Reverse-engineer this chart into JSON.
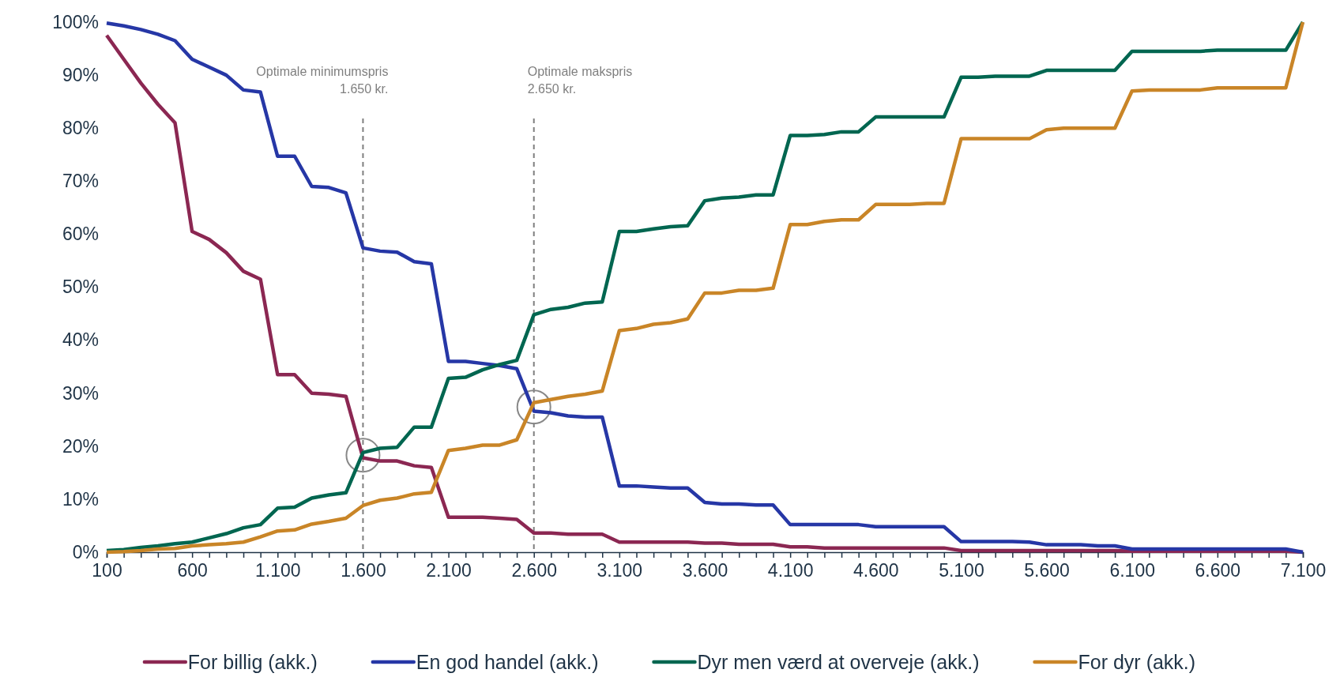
{
  "chart_data": {
    "type": "line",
    "x": [
      100,
      200,
      300,
      400,
      500,
      600,
      700,
      800,
      900,
      1000,
      1100,
      1200,
      1300,
      1400,
      1500,
      1600,
      1700,
      1800,
      1900,
      2000,
      2100,
      2200,
      2300,
      2400,
      2500,
      2600,
      2700,
      2800,
      2900,
      3000,
      3100,
      3200,
      3300,
      3400,
      3500,
      3600,
      3700,
      3800,
      3900,
      4000,
      4100,
      4200,
      4300,
      4400,
      4500,
      4600,
      4700,
      4800,
      4900,
      5000,
      5100,
      5200,
      5300,
      5400,
      5500,
      5600,
      5700,
      5800,
      5900,
      6000,
      6100,
      6200,
      6300,
      6400,
      6500,
      6600,
      6700,
      6800,
      6900,
      7000,
      7100
    ],
    "series": [
      {
        "name": "For billig (akk.)",
        "color": "#8b2752",
        "values": [
          97.5,
          93,
          88.5,
          84.5,
          81,
          60.5,
          59,
          56.5,
          53,
          51.5,
          33.5,
          33.5,
          30,
          29.8,
          29.4,
          17.8,
          17.2,
          17.2,
          16.3,
          16,
          6.6,
          6.6,
          6.6,
          6.4,
          6.2,
          3.6,
          3.6,
          3.4,
          3.4,
          3.4,
          1.9,
          1.9,
          1.9,
          1.9,
          1.9,
          1.7,
          1.7,
          1.5,
          1.5,
          1.5,
          1,
          1,
          0.8,
          0.8,
          0.8,
          0.8,
          0.8,
          0.8,
          0.8,
          0.8,
          0.3,
          0.3,
          0.3,
          0.3,
          0.3,
          0.3,
          0.3,
          0.3,
          0.3,
          0.3,
          0.2,
          0.2,
          0.2,
          0.2,
          0.2,
          0.2,
          0.2,
          0.2,
          0.2,
          0.2,
          0
        ]
      },
      {
        "name": "En god handel (akk.)",
        "color": "#2637a6",
        "values": [
          99.8,
          99.3,
          98.6,
          97.7,
          96.5,
          93,
          91.5,
          90,
          87.2,
          86.8,
          74.7,
          74.7,
          69,
          68.8,
          67.8,
          57.4,
          56.8,
          56.6,
          54.8,
          54.4,
          36,
          36,
          35.6,
          35.2,
          34.6,
          26.6,
          26.3,
          25.7,
          25.5,
          25.5,
          12.5,
          12.5,
          12.3,
          12.1,
          12.1,
          9.4,
          9.1,
          9.1,
          8.9,
          8.9,
          5.2,
          5.2,
          5.2,
          5.2,
          5.2,
          4.8,
          4.8,
          4.8,
          4.8,
          4.8,
          2,
          2,
          2,
          2,
          1.9,
          1.4,
          1.4,
          1.4,
          1.2,
          1.2,
          0.6,
          0.6,
          0.6,
          0.6,
          0.6,
          0.6,
          0.6,
          0.6,
          0.6,
          0.6,
          0
        ]
      },
      {
        "name": "Dyr men værd at overveje (akk.)",
        "color": "#006650",
        "values": [
          0.3,
          0.5,
          0.9,
          1.2,
          1.6,
          1.9,
          2.7,
          3.5,
          4.6,
          5.2,
          8.3,
          8.5,
          10.2,
          10.8,
          11.2,
          18.8,
          19.6,
          19.8,
          23.6,
          23.6,
          32.8,
          33,
          34.4,
          35.4,
          36.2,
          44.8,
          45.8,
          46.2,
          47,
          47.2,
          60.5,
          60.5,
          61,
          61.4,
          61.6,
          66.3,
          66.8,
          67,
          67.4,
          67.4,
          78.6,
          78.6,
          78.8,
          79.3,
          79.3,
          82.1,
          82.1,
          82.1,
          82.1,
          82.1,
          89.6,
          89.6,
          89.8,
          89.8,
          89.8,
          90.9,
          90.9,
          90.9,
          90.9,
          90.9,
          94.5,
          94.5,
          94.5,
          94.5,
          94.5,
          94.7,
          94.7,
          94.7,
          94.7,
          94.7,
          100
        ]
      },
      {
        "name": "For dyr (akk.)",
        "color": "#c98527",
        "values": [
          0,
          0.1,
          0.3,
          0.6,
          0.7,
          1.2,
          1.4,
          1.6,
          1.9,
          2.9,
          4,
          4.2,
          5.3,
          5.8,
          6.4,
          8.8,
          9.8,
          10.2,
          11,
          11.3,
          19.2,
          19.6,
          20.2,
          20.2,
          21.2,
          28.2,
          28.8,
          29.4,
          29.8,
          30.4,
          41.8,
          42.2,
          43,
          43.3,
          44,
          48.9,
          48.9,
          49.4,
          49.4,
          49.8,
          61.8,
          61.8,
          62.4,
          62.7,
          62.7,
          65.6,
          65.6,
          65.6,
          65.8,
          65.8,
          78,
          78,
          78,
          78,
          78,
          79.7,
          80,
          80,
          80,
          80,
          87,
          87.2,
          87.2,
          87.2,
          87.2,
          87.6,
          87.6,
          87.6,
          87.6,
          87.6,
          100
        ]
      }
    ],
    "xlim": [
      100,
      7100
    ],
    "xticks": [
      100,
      {
        "value": 200,
        "label": null
      },
      {
        "value": 300,
        "label": null
      },
      {
        "value": 400,
        "label": null
      },
      {
        "value": 500,
        "label": null
      },
      600,
      {
        "value": 700,
        "label": null
      },
      {
        "value": 800,
        "label": null
      },
      {
        "value": 900,
        "label": null
      },
      {
        "value": 1000,
        "label": null
      },
      {
        "value": 1100,
        "label": "1.100"
      },
      {
        "value": 1200,
        "label": null
      },
      {
        "value": 1300,
        "label": null
      },
      {
        "value": 1400,
        "label": null
      },
      {
        "value": 1500,
        "label": null
      },
      {
        "value": 1600,
        "label": "1.600"
      },
      {
        "value": 1700,
        "label": null
      },
      {
        "value": 1800,
        "label": null
      },
      {
        "value": 1900,
        "label": null
      },
      {
        "value": 2000,
        "label": null
      },
      {
        "value": 2100,
        "label": "2.100"
      },
      {
        "value": 2200,
        "label": null
      },
      {
        "value": 2300,
        "label": null
      },
      {
        "value": 2400,
        "label": null
      },
      {
        "value": 2500,
        "label": null
      },
      {
        "value": 2600,
        "label": "2.600"
      },
      {
        "value": 2700,
        "label": null
      },
      {
        "value": 2800,
        "label": null
      },
      {
        "value": 2900,
        "label": null
      },
      {
        "value": 3000,
        "label": null
      },
      {
        "value": 3100,
        "label": "3.100"
      },
      {
        "value": 3200,
        "label": null
      },
      {
        "value": 3300,
        "label": null
      },
      {
        "value": 3400,
        "label": null
      },
      {
        "value": 3500,
        "label": null
      },
      {
        "value": 3600,
        "label": "3.600"
      },
      {
        "value": 3700,
        "label": null
      },
      {
        "value": 3800,
        "label": null
      },
      {
        "value": 3900,
        "label": null
      },
      {
        "value": 4000,
        "label": null
      },
      {
        "value": 4100,
        "label": "4.100"
      },
      {
        "value": 4200,
        "label": null
      },
      {
        "value": 4300,
        "label": null
      },
      {
        "value": 4400,
        "label": null
      },
      {
        "value": 4500,
        "label": null
      },
      {
        "value": 4600,
        "label": "4.600"
      },
      {
        "value": 4700,
        "label": null
      },
      {
        "value": 4800,
        "label": null
      },
      {
        "value": 4900,
        "label": null
      },
      {
        "value": 5000,
        "label": null
      },
      {
        "value": 5100,
        "label": "5.100"
      },
      {
        "value": 5200,
        "label": null
      },
      {
        "value": 5300,
        "label": null
      },
      {
        "value": 5400,
        "label": null
      },
      {
        "value": 5500,
        "label": null
      },
      {
        "value": 5600,
        "label": "5.600"
      },
      {
        "value": 5700,
        "label": null
      },
      {
        "value": 5800,
        "label": null
      },
      {
        "value": 5900,
        "label": null
      },
      {
        "value": 6000,
        "label": null
      },
      {
        "value": 6100,
        "label": "6.100"
      },
      {
        "value": 6200,
        "label": null
      },
      {
        "value": 6300,
        "label": null
      },
      {
        "value": 6400,
        "label": null
      },
      {
        "value": 6500,
        "label": null
      },
      {
        "value": 6600,
        "label": "6.600"
      },
      {
        "value": 6700,
        "label": null
      },
      {
        "value": 6800,
        "label": null
      },
      {
        "value": 6900,
        "label": null
      },
      {
        "value": 7000,
        "label": null
      },
      {
        "value": 7100,
        "label": "7.100"
      }
    ],
    "ylim": [
      0,
      100
    ],
    "yticks": [
      {
        "value": 0,
        "label": "0%"
      },
      {
        "value": 10,
        "label": "10%"
      },
      {
        "value": 20,
        "label": "20%"
      },
      {
        "value": 30,
        "label": "30%"
      },
      {
        "value": 40,
        "label": "40%"
      },
      {
        "value": 50,
        "label": "50%"
      },
      {
        "value": 60,
        "label": "60%"
      },
      {
        "value": 70,
        "label": "70%"
      },
      {
        "value": 80,
        "label": "80%"
      },
      {
        "value": 90,
        "label": "90%"
      },
      {
        "value": 100,
        "label": "100%"
      }
    ],
    "ref_lines": [
      {
        "axis": "x",
        "value": 1600,
        "label": "Optimale minimumspris\n1.650 kr.",
        "color": "#7f7f7f",
        "line_style": "dashed"
      },
      {
        "axis": "x",
        "value": 2600,
        "label": "Optimale makspris\n2.650 kr.",
        "color": "#7f7f7f",
        "line_style": "dashed"
      }
    ],
    "grid": false,
    "legend": "bottom",
    "marker": "none",
    "line_style": "solid"
  }
}
